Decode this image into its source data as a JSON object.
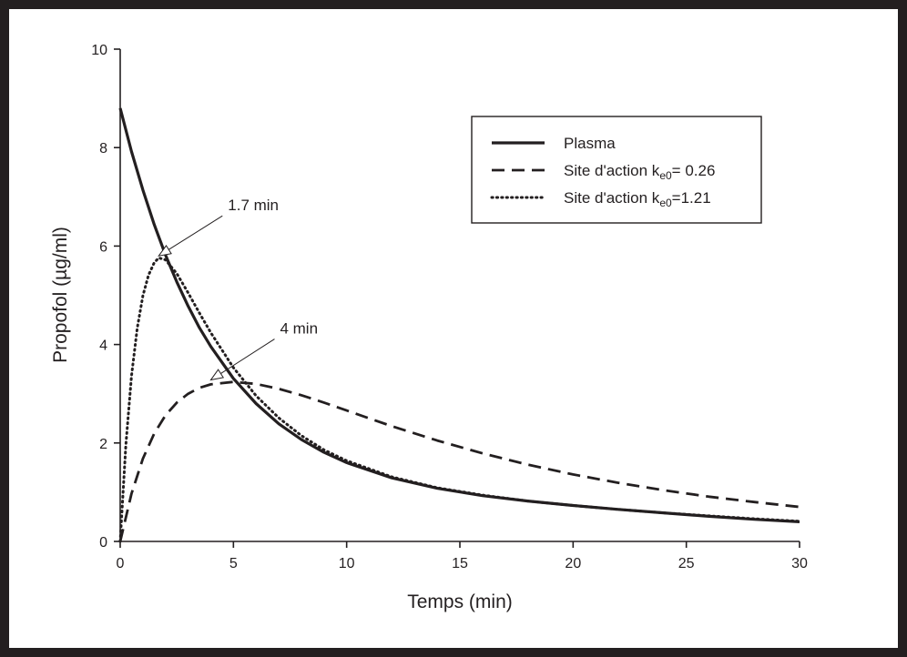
{
  "chart_data": {
    "type": "line",
    "xlabel": "Temps (min)",
    "ylabel": "Propofol (µg/ml)",
    "xlim": [
      0,
      30
    ],
    "ylim": [
      0,
      10
    ],
    "xticks": [
      "0",
      "5",
      "10",
      "15",
      "20",
      "25",
      "30"
    ],
    "yticks": [
      "0",
      "2",
      "4",
      "6",
      "8",
      "10"
    ],
    "grid": false,
    "legend_position": "top-right",
    "series": [
      {
        "name": "Plasma",
        "style": "solid",
        "x": [
          0,
          0.5,
          1,
          1.5,
          2,
          2.5,
          3,
          3.5,
          4,
          5,
          6,
          7,
          8,
          9,
          10,
          12,
          14,
          16,
          18,
          20,
          22,
          24,
          26,
          28,
          30
        ],
        "y": [
          8.8,
          7.92,
          7.14,
          6.44,
          5.82,
          5.27,
          4.78,
          4.34,
          3.96,
          3.31,
          2.8,
          2.39,
          2.07,
          1.81,
          1.6,
          1.29,
          1.08,
          0.93,
          0.82,
          0.73,
          0.65,
          0.58,
          0.51,
          0.45,
          0.4
        ]
      },
      {
        "name": "Site d'action k<sub>e0</sub>= 0.26",
        "style": "dashed",
        "x": [
          0,
          0.5,
          1,
          1.5,
          2,
          2.5,
          3,
          3.5,
          4,
          5,
          6,
          7,
          8,
          9,
          10,
          12,
          14,
          16,
          18,
          20,
          22,
          24,
          26,
          28,
          30
        ],
        "y": [
          0,
          0.97,
          1.68,
          2.19,
          2.56,
          2.82,
          3.0,
          3.12,
          3.19,
          3.24,
          3.2,
          3.1,
          2.97,
          2.82,
          2.66,
          2.34,
          2.05,
          1.79,
          1.56,
          1.36,
          1.19,
          1.04,
          0.91,
          0.8,
          0.7
        ]
      },
      {
        "name": "Site d'action k<sub>e0</sub>=1.21",
        "style": "dotted",
        "x": [
          0,
          0.25,
          0.5,
          0.75,
          1,
          1.25,
          1.5,
          1.7,
          2,
          2.5,
          3,
          3.5,
          4,
          5,
          6,
          7,
          8,
          9,
          10,
          12,
          14,
          16,
          18,
          20,
          22,
          24,
          26,
          28,
          30
        ],
        "y": [
          0,
          1.96,
          3.36,
          4.33,
          4.99,
          5.41,
          5.66,
          5.76,
          5.72,
          5.44,
          5.05,
          4.64,
          4.24,
          3.53,
          2.96,
          2.51,
          2.15,
          1.86,
          1.64,
          1.31,
          1.09,
          0.94,
          0.82,
          0.73,
          0.65,
          0.58,
          0.52,
          0.46,
          0.41
        ]
      }
    ],
    "annotations": [
      {
        "text": "1.7 min",
        "x": 1.7,
        "y": 5.8
      },
      {
        "text": "4 min",
        "x": 4,
        "y": 3.28
      }
    ]
  }
}
